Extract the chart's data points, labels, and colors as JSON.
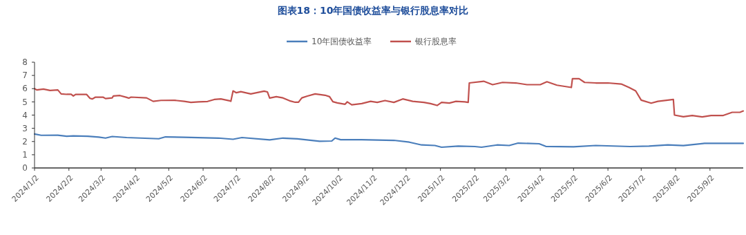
{
  "chart_data": {
    "type": "line",
    "title": "图表18：10年国债收益率与银行股息率对比",
    "xlim": [
      "2024-01-02",
      "2025-10-02"
    ],
    "xticks": [
      {
        "value": "2024-01-02",
        "label": "2024/1/2"
      },
      {
        "value": "2024-02-02",
        "label": "2024/2/2"
      },
      {
        "value": "2024-03-02",
        "label": "2024/3/2"
      },
      {
        "value": "2024-04-02",
        "label": "2024/4/2"
      },
      {
        "value": "2024-05-02",
        "label": "2024/5/2"
      },
      {
        "value": "2024-06-02",
        "label": "2024/6/2"
      },
      {
        "value": "2024-07-02",
        "label": "2024/7/2"
      },
      {
        "value": "2024-08-02",
        "label": "2024/8/2"
      },
      {
        "value": "2024-09-02",
        "label": "2024/9/2"
      },
      {
        "value": "2024-10-02",
        "label": "2024/10/2"
      },
      {
        "value": "2024-11-02",
        "label": "2024/11/2"
      },
      {
        "value": "2024-12-02",
        "label": "2024/12/2"
      },
      {
        "value": "2025-01-02",
        "label": "2025/1/2"
      },
      {
        "value": "2025-02-02",
        "label": "2025/2/2"
      },
      {
        "value": "2025-03-02",
        "label": "2025/3/2"
      },
      {
        "value": "2025-04-02",
        "label": "2025/4/2"
      },
      {
        "value": "2025-05-02",
        "label": "2025/5/2"
      },
      {
        "value": "2025-06-02",
        "label": "2025/6/2"
      },
      {
        "value": "2025-07-02",
        "label": "2025/7/2"
      },
      {
        "value": "2025-08-02",
        "label": "2025/8/2"
      },
      {
        "value": "2025-09-02",
        "label": "2025/9/2"
      }
    ],
    "ylim": [
      0,
      8
    ],
    "yticks": [
      0,
      1,
      2,
      3,
      4,
      5,
      6,
      7,
      8
    ],
    "grid": false,
    "legend": "top",
    "line_style": "solid",
    "marker": "none",
    "series": [
      {
        "name": "10年国债收益率",
        "color": "#4a7ebb",
        "x": [
          "2024-01-02",
          "2024-01-08",
          "2024-01-23",
          "2024-01-31",
          "2024-02-06",
          "2024-02-19",
          "2024-02-29",
          "2024-03-06",
          "2024-03-12",
          "2024-03-25",
          "2024-04-23",
          "2024-04-29",
          "2024-05-16",
          "2024-06-16",
          "2024-06-29",
          "2024-07-07",
          "2024-08-01",
          "2024-08-13",
          "2024-08-26",
          "2024-09-15",
          "2024-09-26",
          "2024-09-29",
          "2024-10-04",
          "2024-10-23",
          "2024-11-21",
          "2024-12-05",
          "2024-12-16",
          "2024-12-28",
          "2025-01-03",
          "2025-01-18",
          "2025-02-02",
          "2025-02-08",
          "2025-02-22",
          "2025-03-05",
          "2025-03-13",
          "2025-04-01",
          "2025-04-07",
          "2025-05-02",
          "2025-05-22",
          "2025-06-22",
          "2025-07-09",
          "2025-07-26",
          "2025-08-09",
          "2025-08-28",
          "2025-09-14",
          "2025-10-02"
        ],
        "values": [
          2.57,
          2.47,
          2.48,
          2.4,
          2.42,
          2.4,
          2.33,
          2.26,
          2.38,
          2.3,
          2.21,
          2.35,
          2.32,
          2.26,
          2.17,
          2.3,
          2.12,
          2.26,
          2.2,
          2.02,
          2.04,
          2.26,
          2.14,
          2.14,
          2.09,
          1.95,
          1.74,
          1.7,
          1.57,
          1.65,
          1.62,
          1.57,
          1.74,
          1.7,
          1.88,
          1.83,
          1.63,
          1.6,
          1.7,
          1.62,
          1.65,
          1.74,
          1.69,
          1.86,
          1.86,
          1.86
        ]
      },
      {
        "name": "银行股息率",
        "color": "#c0504d",
        "x": [
          "2024-01-02",
          "2024-01-04",
          "2024-01-10",
          "2024-01-16",
          "2024-01-23",
          "2024-01-26",
          "2024-01-31",
          "2024-02-04",
          "2024-02-06",
          "2024-02-08",
          "2024-02-18",
          "2024-02-21",
          "2024-02-23",
          "2024-02-26",
          "2024-03-04",
          "2024-03-06",
          "2024-03-12",
          "2024-03-13",
          "2024-03-19",
          "2024-03-25",
          "2024-03-27",
          "2024-03-29",
          "2024-04-12",
          "2024-04-18",
          "2024-04-25",
          "2024-05-07",
          "2024-05-16",
          "2024-05-22",
          "2024-05-29",
          "2024-06-06",
          "2024-06-12",
          "2024-06-18",
          "2024-06-26",
          "2024-06-27",
          "2024-06-29",
          "2024-07-02",
          "2024-07-06",
          "2024-07-15",
          "2024-07-27",
          "2024-07-30",
          "2024-08-01",
          "2024-08-07",
          "2024-08-13",
          "2024-08-19",
          "2024-08-24",
          "2024-08-27",
          "2024-08-30",
          "2024-09-04",
          "2024-09-11",
          "2024-09-20",
          "2024-09-24",
          "2024-09-27",
          "2024-10-01",
          "2024-10-08",
          "2024-10-10",
          "2024-10-14",
          "2024-10-23",
          "2024-10-31",
          "2024-11-06",
          "2024-11-13",
          "2024-11-21",
          "2024-11-29",
          "2024-12-08",
          "2024-12-18",
          "2024-12-24",
          "2024-12-30",
          "2025-01-03",
          "2025-01-10",
          "2025-01-16",
          "2025-01-24",
          "2025-01-27",
          "2025-01-28",
          "2025-02-10",
          "2025-02-18",
          "2025-02-27",
          "2025-03-11",
          "2025-03-21",
          "2025-04-02",
          "2025-04-08",
          "2025-04-17",
          "2025-04-24",
          "2025-04-30",
          "2025-05-01",
          "2025-05-07",
          "2025-05-12",
          "2025-05-22",
          "2025-06-02",
          "2025-06-14",
          "2025-06-21",
          "2025-06-27",
          "2025-07-02",
          "2025-07-11",
          "2025-07-17",
          "2025-07-26",
          "2025-07-31",
          "2025-08-01",
          "2025-08-09",
          "2025-08-17",
          "2025-08-26",
          "2025-09-03",
          "2025-09-14",
          "2025-09-22",
          "2025-09-29",
          "2025-10-02"
        ],
        "values": [
          6.0,
          5.9,
          5.97,
          5.86,
          5.9,
          5.6,
          5.57,
          5.58,
          5.44,
          5.56,
          5.56,
          5.27,
          5.22,
          5.36,
          5.35,
          5.25,
          5.3,
          5.44,
          5.48,
          5.34,
          5.28,
          5.36,
          5.3,
          5.04,
          5.11,
          5.12,
          5.04,
          4.96,
          5.0,
          5.03,
          5.18,
          5.22,
          5.08,
          5.04,
          5.83,
          5.69,
          5.77,
          5.6,
          5.81,
          5.75,
          5.29,
          5.39,
          5.3,
          5.08,
          4.97,
          4.97,
          5.3,
          5.44,
          5.6,
          5.5,
          5.39,
          5.01,
          4.92,
          4.82,
          5.0,
          4.78,
          4.87,
          5.04,
          4.96,
          5.1,
          4.96,
          5.22,
          5.04,
          4.96,
          4.87,
          4.73,
          4.96,
          4.91,
          5.04,
          5.0,
          4.96,
          6.43,
          6.56,
          6.3,
          6.47,
          6.43,
          6.3,
          6.3,
          6.52,
          6.26,
          6.17,
          6.09,
          6.75,
          6.75,
          6.47,
          6.43,
          6.43,
          6.35,
          6.09,
          5.83,
          5.13,
          4.9,
          5.04,
          5.13,
          5.18,
          4.0,
          3.88,
          3.97,
          3.86,
          3.97,
          3.97,
          4.21,
          4.21,
          4.31
        ]
      }
    ]
  }
}
